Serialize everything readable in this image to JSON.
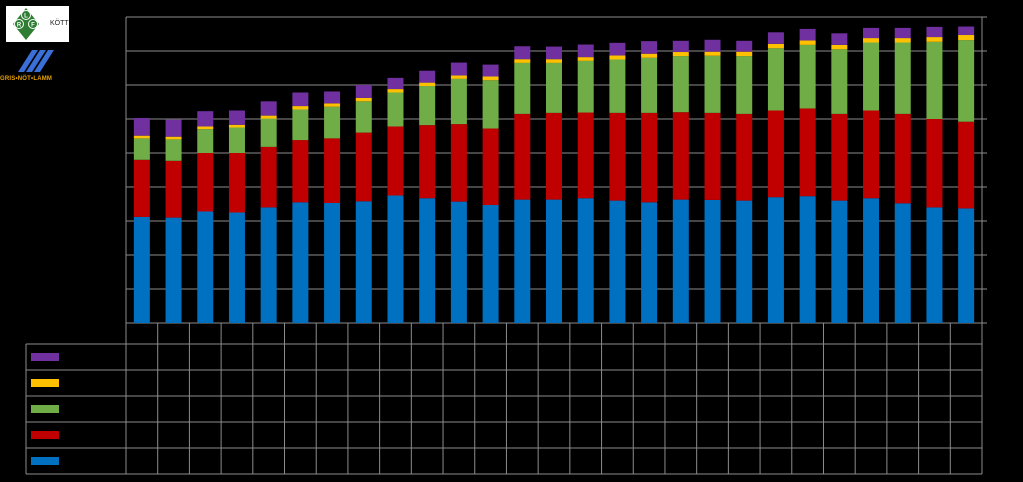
{
  "logos": {
    "top_text": "KÖTT",
    "badge_letters": [
      "L",
      "R",
      "F"
    ],
    "bottom_text": "GRIS•NÖT•LAMM"
  },
  "colors": {
    "background": "#000000",
    "grid": "#8c8c8c",
    "series": [
      "#0070c0",
      "#c00000",
      "#70ad47",
      "#ffc000",
      "#7030a0"
    ]
  },
  "chart_data": {
    "type": "bar",
    "stacked": true,
    "ylim": [
      0,
      90
    ],
    "categories": [
      "",
      "",
      "",
      "",
      "",
      "",
      "",
      "",
      "",
      "",
      "",
      "",
      "",
      "",
      "",
      "",
      "",
      "",
      "",
      "",
      "",
      "",
      "",
      "",
      "",
      "",
      ""
    ],
    "series": [
      {
        "color": "#0070c0",
        "values": [
          31.2,
          31.0,
          32.8,
          32.5,
          34.0,
          35.5,
          35.3,
          35.8,
          37.5,
          36.7,
          35.7,
          34.7,
          36.3,
          36.3,
          36.7,
          36.0,
          35.5,
          36.3,
          36.2,
          36.0,
          37.0,
          37.3,
          36.0,
          36.7,
          35.2,
          34.0,
          33.7
        ]
      },
      {
        "color": "#c00000",
        "values": [
          16.8,
          16.7,
          17.2,
          17.5,
          17.8,
          18.3,
          19.0,
          20.2,
          20.3,
          21.5,
          22.8,
          22.5,
          25.2,
          25.5,
          25.2,
          25.8,
          26.3,
          25.7,
          25.6,
          25.5,
          25.5,
          25.8,
          25.5,
          25.8,
          26.3,
          26.0,
          25.5
        ]
      },
      {
        "color": "#70ad47",
        "values": [
          6.3,
          6.3,
          7.0,
          7.5,
          8.3,
          9.0,
          9.3,
          9.2,
          10.0,
          11.5,
          13.3,
          14.2,
          15.0,
          14.7,
          15.2,
          15.7,
          16.2,
          16.5,
          16.8,
          17.0,
          18.3,
          18.7,
          19.0,
          20.0,
          21.0,
          22.7,
          24.0
        ]
      },
      {
        "color": "#ffc000",
        "values": [
          0.8,
          0.8,
          0.8,
          0.8,
          0.9,
          1.0,
          1.0,
          1.0,
          1.0,
          1.0,
          1.0,
          1.1,
          1.1,
          1.1,
          1.1,
          1.2,
          1.2,
          1.2,
          1.2,
          1.3,
          1.3,
          1.3,
          1.3,
          1.3,
          1.3,
          1.4,
          1.5
        ]
      },
      {
        "color": "#7030a0",
        "values": [
          5.2,
          5.0,
          4.5,
          4.2,
          4.2,
          4.0,
          3.5,
          3.8,
          3.3,
          3.5,
          3.8,
          3.5,
          3.8,
          3.7,
          3.7,
          3.7,
          3.7,
          3.3,
          3.5,
          3.2,
          3.4,
          3.4,
          3.4,
          3.0,
          3.0,
          3.0,
          2.5
        ]
      }
    ],
    "grid": true,
    "legend": "data-table-left"
  }
}
